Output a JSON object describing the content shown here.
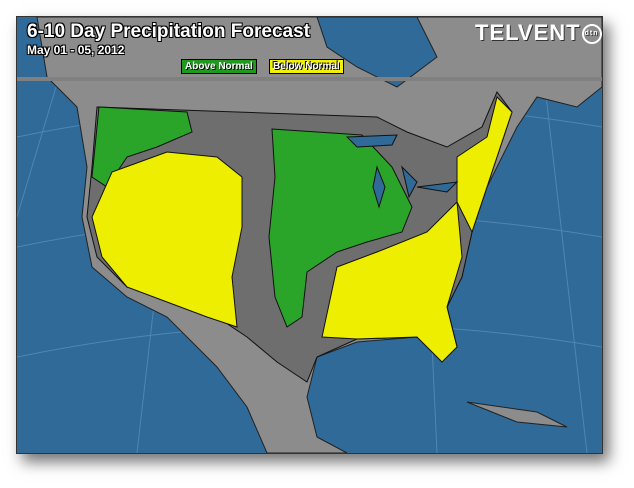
{
  "header": {
    "title": "6-10 Day Precipitation Forecast",
    "date_range": "May 01 - 05, 2012",
    "logo": "TELVENT",
    "logo_badge": "dtn"
  },
  "legend": [
    {
      "label": "Above Normal",
      "color": "#1f9a1f"
    },
    {
      "label": "Below Normal",
      "color": "#f2f200"
    }
  ],
  "colors": {
    "ocean": "#2f6a98",
    "land": "#8c8c8c",
    "near_normal": "#6e6e6e",
    "above_normal": "#2aa52a",
    "below_normal": "#eeee00"
  }
}
